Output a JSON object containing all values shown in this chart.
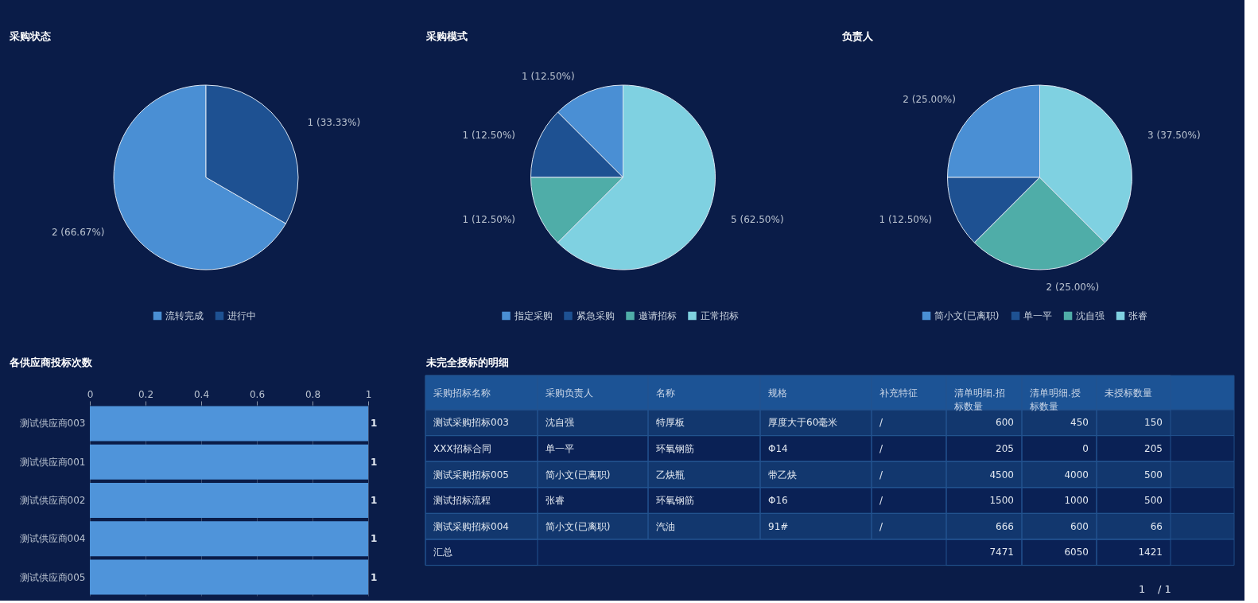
{
  "chart_data": [
    {
      "type": "pie",
      "title": "采购状态",
      "categories": [
        "流转完成",
        "进行中"
      ],
      "values": [
        2,
        1
      ],
      "colors": [
        "#4a8fd4",
        "#1e5192"
      ],
      "value_labels": [
        "2 (66.67%)",
        "1 (33.33%)"
      ],
      "legend": "bottom"
    },
    {
      "type": "pie",
      "title": "采购模式",
      "categories": [
        "指定采购",
        "紧急采购",
        "邀请招标",
        "正常招标"
      ],
      "values": [
        1,
        1,
        1,
        5
      ],
      "colors": [
        "#4a8fd4",
        "#1e5192",
        "#4fada8",
        "#7fd1e1"
      ],
      "value_labels": [
        "1 (12.50%)",
        "1 (12.50%)",
        "1 (12.50%)",
        "5 (62.50%)"
      ],
      "legend": "bottom"
    },
    {
      "type": "pie",
      "title": "负责人",
      "categories": [
        "简小文(已离职)",
        "单一平",
        "沈自强",
        "张睿"
      ],
      "values": [
        2,
        1,
        2,
        3
      ],
      "colors": [
        "#4a8fd4",
        "#1e5192",
        "#4fada8",
        "#7fd1e1"
      ],
      "value_labels": [
        "2 (25.00%)",
        "1 (12.50%)",
        "2 (25.00%)",
        "3 (37.50%)"
      ],
      "legend": "bottom"
    },
    {
      "type": "bar",
      "orientation": "horizontal",
      "title": "各供应商投标次数",
      "categories": [
        "测试供应商003",
        "测试供应商001",
        "测试供应商002",
        "测试供应商004",
        "测试供应商005"
      ],
      "values": [
        1,
        1,
        1,
        1,
        1
      ],
      "color": "#4f94da",
      "xlim": [
        0,
        1
      ],
      "xticks": [
        0,
        0.2,
        0.4,
        0.6,
        0.8,
        1
      ],
      "grid": "x",
      "data_labels": true
    },
    {
      "type": "other",
      "title": "未完全授标的明细",
      "categories": [
        "采购招标名称",
        "采购负责人",
        "名称",
        "规格",
        "补充特征",
        "清单明细.招标数量",
        "清单明细.授标数量",
        "未授标数量",
        null
      ],
      "cell_labels": [
        [
          "测试采购招标003",
          "沈自强",
          "特厚板",
          "厚度大于60毫米",
          "/",
          "600",
          "450",
          "150",
          null
        ],
        [
          "XXX招标合同",
          "单一平",
          "环氧钢筋",
          "Φ14",
          "/",
          "205",
          "0",
          "205",
          null
        ],
        [
          "测试采购招标005",
          "简小文(已离职)",
          "乙炔瓶",
          "带乙炔",
          "/",
          "4500",
          "4000",
          "500",
          null
        ],
        [
          "测试招标流程",
          "张睿",
          "环氧钢筋",
          "Φ16",
          "/",
          "1500",
          "1000",
          "500",
          null
        ],
        [
          "测试采购招标004",
          "简小文(已离职)",
          "汽油",
          "91#",
          "/",
          "666",
          "600",
          "66",
          null
        ],
        [
          "汇总",
          null,
          null,
          null,
          null,
          "7471",
          "6050",
          "1421",
          null
        ]
      ],
      "annotations": [
        "1",
        "/ 1"
      ]
    }
  ]
}
